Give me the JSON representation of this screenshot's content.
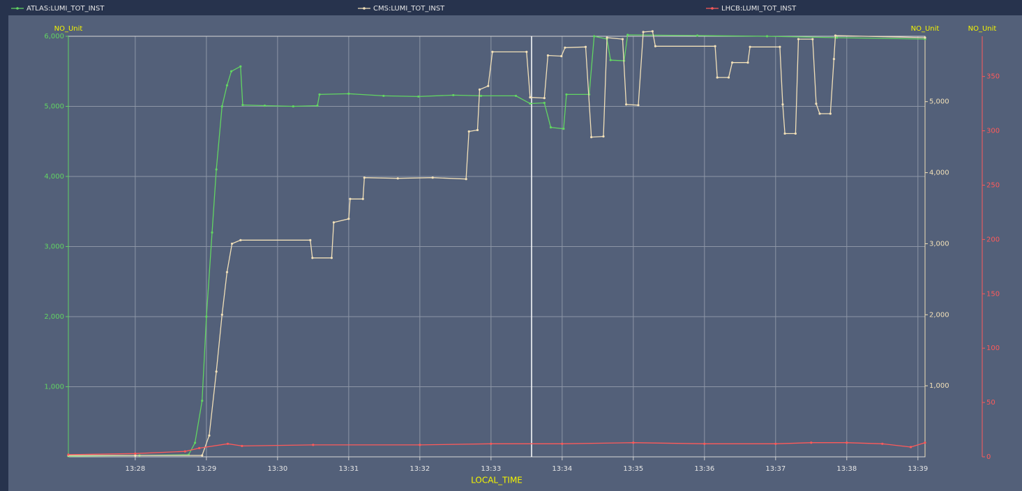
{
  "chart_data": {
    "type": "line",
    "xlabel": "LOCAL_TIME",
    "ylabel": "NO_Unit",
    "y2label": "NO_Unit",
    "y3label": "NO_Unit",
    "xlim": [
      807.06,
      819.1
    ],
    "xticks": [
      {
        "value": 808,
        "label": "13:28"
      },
      {
        "value": 809,
        "label": "13:29"
      },
      {
        "value": 810,
        "label": "13:30"
      },
      {
        "value": 811,
        "label": "13:31"
      },
      {
        "value": 812,
        "label": "13:32"
      },
      {
        "value": 813,
        "label": "13:33"
      },
      {
        "value": 814,
        "label": "13:34"
      },
      {
        "value": 815,
        "label": "13:35"
      },
      {
        "value": 816,
        "label": "13:36"
      },
      {
        "value": 817,
        "label": "13:37"
      },
      {
        "value": 818,
        "label": "13:38"
      },
      {
        "value": 819,
        "label": "13:39"
      }
    ],
    "ylim": [
      0,
      6000
    ],
    "yticks": [
      {
        "value": 1000,
        "label": "1,000"
      },
      {
        "value": 2000,
        "label": "2,000"
      },
      {
        "value": 3000,
        "label": "3,000"
      },
      {
        "value": 4000,
        "label": "4,000"
      },
      {
        "value": 5000,
        "label": "5,000"
      },
      {
        "value": 6000,
        "label": "6,000"
      }
    ],
    "y2lim": [
      0,
      5920
    ],
    "y2ticks": [
      {
        "value": 1000,
        "label": "1,000"
      },
      {
        "value": 2000,
        "label": "2,000"
      },
      {
        "value": 3000,
        "label": "3,000"
      },
      {
        "value": 4000,
        "label": "4,000"
      },
      {
        "value": 5000,
        "label": "5,000"
      }
    ],
    "y3lim": [
      0,
      387
    ],
    "y3ticks": [
      0,
      50,
      100,
      150,
      200,
      250,
      300,
      350
    ],
    "grid": true,
    "series": [
      {
        "name": "ATLAS:LUMI_TOT_INST",
        "color": "#62d562",
        "axis": "y",
        "x": [
          807.06,
          808.06,
          808.75,
          808.84,
          808.94,
          809.0,
          809.08,
          809.14,
          809.22,
          809.29,
          809.35,
          809.48,
          809.51,
          809.82,
          810.22,
          810.56,
          810.59,
          811.0,
          811.49,
          811.98,
          812.47,
          812.86,
          813.35,
          813.55,
          813.75,
          813.84,
          814.02,
          814.06,
          814.38,
          814.45,
          814.63,
          814.68,
          814.87,
          814.92,
          815.9,
          816.88,
          817.86,
          819.1
        ],
        "values": [
          10,
          20,
          30,
          200,
          800,
          2000,
          3200,
          4100,
          5000,
          5300,
          5500,
          5570,
          5020,
          5010,
          5000,
          5010,
          5170,
          5180,
          5150,
          5140,
          5160,
          5150,
          5150,
          5040,
          5050,
          4700,
          4680,
          5170,
          5170,
          6000,
          5960,
          5660,
          5650,
          6020,
          6010,
          6000,
          5980,
          5960
        ]
      },
      {
        "name": "CMS:LUMI_TOT_INST",
        "color": "#f2e0b8",
        "axis": "y2",
        "x": [
          807.06,
          808.0,
          808.94,
          809.04,
          809.14,
          809.22,
          809.29,
          809.36,
          809.48,
          810.46,
          810.49,
          810.76,
          810.79,
          811.0,
          811.02,
          811.2,
          811.22,
          811.69,
          812.18,
          812.65,
          812.69,
          812.81,
          812.84,
          812.96,
          813.02,
          813.5,
          813.55,
          813.75,
          813.8,
          813.99,
          814.04,
          814.33,
          814.41,
          814.58,
          814.63,
          814.85,
          814.9,
          815.07,
          815.14,
          815.27,
          815.31,
          816.15,
          816.18,
          816.34,
          816.39,
          816.61,
          816.64,
          817.06,
          817.1,
          817.13,
          817.28,
          817.32,
          817.52,
          817.57,
          817.62,
          817.77,
          817.82,
          817.84,
          819.1
        ],
        "values": [
          20,
          20,
          20,
          300,
          1200,
          2000,
          2600,
          3000,
          3050,
          3050,
          2800,
          2800,
          3300,
          3350,
          3630,
          3630,
          3930,
          3920,
          3930,
          3910,
          4580,
          4600,
          5170,
          5220,
          5700,
          5700,
          5060,
          5050,
          5650,
          5640,
          5760,
          5770,
          4500,
          4510,
          5900,
          5880,
          4960,
          4950,
          5980,
          5990,
          5780,
          5780,
          5340,
          5340,
          5550,
          5550,
          5770,
          5770,
          4960,
          4550,
          4550,
          5880,
          5880,
          4970,
          4830,
          4830,
          5600,
          5930,
          5900
        ]
      },
      {
        "name": "LHCB:LUMI_TOT_INST",
        "color": "#ff5a5a",
        "axis": "y3",
        "x": [
          807.06,
          808.0,
          808.7,
          808.9,
          809.3,
          809.5,
          810.5,
          812.0,
          813.0,
          814.0,
          815.0,
          816.0,
          817.0,
          817.5,
          818.0,
          818.5,
          818.9,
          819.1
        ],
        "values": [
          2,
          3,
          5,
          8,
          12,
          10,
          11,
          11,
          12,
          12,
          13,
          12,
          12,
          13,
          13,
          12,
          9,
          13
        ]
      }
    ]
  }
}
